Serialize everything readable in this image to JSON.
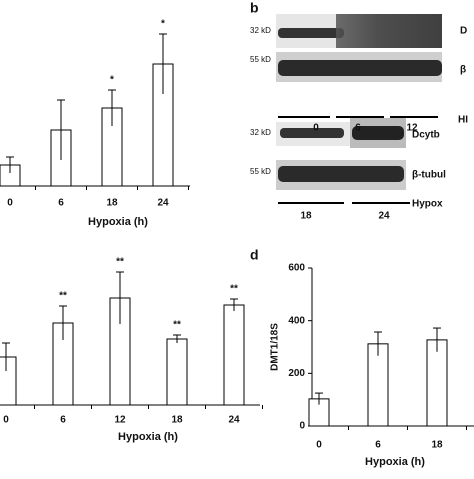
{
  "chart_data": [
    {
      "type": "bar",
      "categories": [
        "0",
        "6",
        "18",
        "24"
      ],
      "values": [
        21,
        56,
        78,
        122
      ],
      "errors": [
        8,
        30,
        18,
        30
      ],
      "annotations": [
        null,
        null,
        "*",
        "*"
      ],
      "ylim": [
        0,
        130
      ],
      "xlabel": "Hypoxia (h)"
    },
    {
      "type": "bar",
      "categories": [
        "0",
        "6",
        "12",
        "18",
        "24"
      ],
      "values": [
        48,
        82,
        107,
        66,
        100
      ],
      "errors": [
        14,
        17,
        26,
        4,
        6
      ],
      "annotations": [
        null,
        "**",
        "**",
        "**",
        "**"
      ],
      "ylim": [
        0,
        130
      ],
      "xlabel": "Hypoxia (h)"
    },
    {
      "type": "bar",
      "panel_label": "d",
      "categories": [
        "0",
        "6",
        "18"
      ],
      "values": [
        103,
        312,
        327
      ],
      "errors": [
        22,
        45,
        45
      ],
      "annotations": [
        null,
        null,
        null
      ],
      "ylim": [
        0,
        600
      ],
      "yticks": [
        0,
        200,
        400,
        600
      ],
      "ylabel": "DMT1/18S",
      "xlabel": "Hypoxia (h)"
    }
  ],
  "figure_b": {
    "panel_label": "b",
    "upper": {
      "mw": [
        "32 kD",
        "55 kD"
      ],
      "rows": [
        "D",
        "β"
      ],
      "axis": "HI",
      "groups": [
        "0",
        "6",
        "12"
      ]
    },
    "lower": {
      "mw": [
        "32 kD",
        "55 kD"
      ],
      "rows": [
        "Dcytb",
        "β-tubul"
      ],
      "axis": "Hypox",
      "groups": [
        "18",
        "24"
      ]
    }
  }
}
